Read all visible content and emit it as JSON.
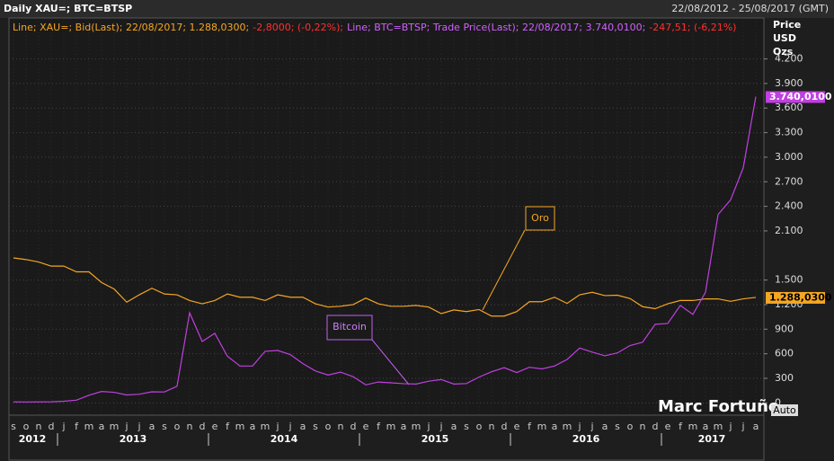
{
  "chart_data": {
    "type": "line",
    "title": "Daily XAU=; BTC=BTSP",
    "date_range": "22/08/2012 - 25/08/2017 (GMT)",
    "y_axis_labels": [
      "Price",
      "USD",
      "Ozs"
    ],
    "annotations": [
      "Oro",
      "Bitcoin"
    ],
    "watermark": "Marc Fortuño",
    "scale_mode": "Auto",
    "grid": true,
    "x": [
      "2012-09",
      "2012-10",
      "2012-11",
      "2012-12",
      "2013-01",
      "2013-02",
      "2013-03",
      "2013-04",
      "2013-05",
      "2013-06",
      "2013-07",
      "2013-08",
      "2013-09",
      "2013-10",
      "2013-11",
      "2013-12",
      "2014-01",
      "2014-02",
      "2014-03",
      "2014-04",
      "2014-05",
      "2014-06",
      "2014-07",
      "2014-08",
      "2014-09",
      "2014-10",
      "2014-11",
      "2014-12",
      "2015-01",
      "2015-02",
      "2015-03",
      "2015-04",
      "2015-05",
      "2015-06",
      "2015-07",
      "2015-08",
      "2015-09",
      "2015-10",
      "2015-11",
      "2015-12",
      "2016-01",
      "2016-02",
      "2016-03",
      "2016-04",
      "2016-05",
      "2016-06",
      "2016-07",
      "2016-08",
      "2016-09",
      "2016-10",
      "2016-11",
      "2016-12",
      "2017-01",
      "2017-02",
      "2017-03",
      "2017-04",
      "2017-05",
      "2017-06",
      "2017-07",
      "2017-08"
    ],
    "xticks": [
      {
        "value": "2012-09",
        "label": "s"
      },
      {
        "value": "2012-10",
        "label": "o"
      },
      {
        "value": "2012-11",
        "label": "n"
      },
      {
        "value": "2012-12",
        "label": "d"
      },
      {
        "value": "2013-01",
        "label": "j"
      },
      {
        "value": "2013-02",
        "label": "f"
      },
      {
        "value": "2013-03",
        "label": "m"
      },
      {
        "value": "2013-04",
        "label": "a"
      },
      {
        "value": "2013-05",
        "label": "m"
      },
      {
        "value": "2013-06",
        "label": "j"
      },
      {
        "value": "2013-07",
        "label": "j"
      },
      {
        "value": "2013-08",
        "label": "a"
      },
      {
        "value": "2013-09",
        "label": "s"
      },
      {
        "value": "2013-10",
        "label": "o"
      },
      {
        "value": "2013-11",
        "label": "n"
      },
      {
        "value": "2013-12",
        "label": "d"
      },
      {
        "value": "2014-01",
        "label": "e"
      },
      {
        "value": "2014-02",
        "label": "f"
      },
      {
        "value": "2014-03",
        "label": "m"
      },
      {
        "value": "2014-04",
        "label": "a"
      },
      {
        "value": "2014-05",
        "label": "m"
      },
      {
        "value": "2014-06",
        "label": "j"
      },
      {
        "value": "2014-07",
        "label": "j"
      },
      {
        "value": "2014-08",
        "label": "a"
      },
      {
        "value": "2014-09",
        "label": "s"
      },
      {
        "value": "2014-10",
        "label": "o"
      },
      {
        "value": "2014-11",
        "label": "n"
      },
      {
        "value": "2014-12",
        "label": "d"
      },
      {
        "value": "2015-01",
        "label": "e"
      },
      {
        "value": "2015-02",
        "label": "f"
      },
      {
        "value": "2015-03",
        "label": "m"
      },
      {
        "value": "2015-04",
        "label": "a"
      },
      {
        "value": "2015-05",
        "label": "m"
      },
      {
        "value": "2015-06",
        "label": "j"
      },
      {
        "value": "2015-07",
        "label": "j"
      },
      {
        "value": "2015-08",
        "label": "a"
      },
      {
        "value": "2015-09",
        "label": "s"
      },
      {
        "value": "2015-10",
        "label": "o"
      },
      {
        "value": "2015-11",
        "label": "n"
      },
      {
        "value": "2015-12",
        "label": "d"
      },
      {
        "value": "2016-01",
        "label": "e"
      },
      {
        "value": "2016-02",
        "label": "f"
      },
      {
        "value": "2016-03",
        "label": "m"
      },
      {
        "value": "2016-04",
        "label": "a"
      },
      {
        "value": "2016-05",
        "label": "m"
      },
      {
        "value": "2016-06",
        "label": "j"
      },
      {
        "value": "2016-07",
        "label": "j"
      },
      {
        "value": "2016-08",
        "label": "a"
      },
      {
        "value": "2016-09",
        "label": "s"
      },
      {
        "value": "2016-10",
        "label": "o"
      },
      {
        "value": "2016-11",
        "label": "n"
      },
      {
        "value": "2016-12",
        "label": "d"
      },
      {
        "value": "2017-01",
        "label": "e"
      },
      {
        "value": "2017-02",
        "label": "f"
      },
      {
        "value": "2017-03",
        "label": "m"
      },
      {
        "value": "2017-04",
        "label": "a"
      },
      {
        "value": "2017-05",
        "label": "m"
      },
      {
        "value": "2017-06",
        "label": "j"
      },
      {
        "value": "2017-07",
        "label": "j"
      },
      {
        "value": "2017-08",
        "label": "a"
      }
    ],
    "years": [
      "2012",
      "2013",
      "2014",
      "2015",
      "2016",
      "2017"
    ],
    "ylim": [
      -150,
      4700
    ],
    "yticks": [
      {
        "value": 4200,
        "label": "4.200"
      },
      {
        "value": 3900,
        "label": "3.900"
      },
      {
        "value": 3600,
        "label": "3.600"
      },
      {
        "value": 3300,
        "label": "3.300"
      },
      {
        "value": 3000,
        "label": "3.000"
      },
      {
        "value": 2700,
        "label": "2.700"
      },
      {
        "value": 2400,
        "label": "2.400"
      },
      {
        "value": 2100,
        "label": "2.100"
      },
      {
        "value": 1500,
        "label": "1.500"
      },
      {
        "value": 1200,
        "label": "1.200"
      },
      900,
      600,
      300,
      0
    ],
    "series": [
      {
        "name": "Line; XAU=; Bid(Last); 22/08/2017; 1.288,0300;",
        "change": "-2,8000; (-0,22%);",
        "color": "#f5a623",
        "values": [
          1770,
          1750,
          1720,
          1670,
          1670,
          1600,
          1600,
          1470,
          1390,
          1230,
          1320,
          1400,
          1330,
          1320,
          1250,
          1210,
          1250,
          1330,
          1290,
          1290,
          1250,
          1320,
          1290,
          1290,
          1210,
          1170,
          1180,
          1200,
          1280,
          1210,
          1180,
          1180,
          1190,
          1170,
          1090,
          1135,
          1115,
          1140,
          1060,
          1060,
          1115,
          1235,
          1235,
          1290,
          1215,
          1320,
          1350,
          1310,
          1315,
          1275,
          1175,
          1150,
          1210,
          1250,
          1250,
          1270,
          1270,
          1240,
          1270,
          1288.03
        ],
        "last_value": 1288.03,
        "value_label": "1.288,0300"
      },
      {
        "name": "Line; BTC=BTSP; Trade Price(Last); 22/08/2017; 3.740,0100;",
        "change": "-247,51; (-6,21%)",
        "color": "#c040e0",
        "values": [
          12,
          11,
          12,
          13,
          20,
          33,
          93,
          139,
          129,
          97,
          106,
          135,
          133,
          203,
          1100,
          750,
          850,
          570,
          450,
          450,
          630,
          640,
          590,
          480,
          390,
          340,
          375,
          320,
          220,
          255,
          245,
          235,
          230,
          265,
          285,
          230,
          236,
          315,
          380,
          430,
          370,
          435,
          415,
          450,
          530,
          670,
          620,
          575,
          610,
          700,
          740,
          960,
          970,
          1190,
          1080,
          1350,
          2300,
          2480,
          2870,
          3740.01
        ],
        "last_value": 3740.01,
        "value_label": "3.740,0100"
      }
    ]
  }
}
